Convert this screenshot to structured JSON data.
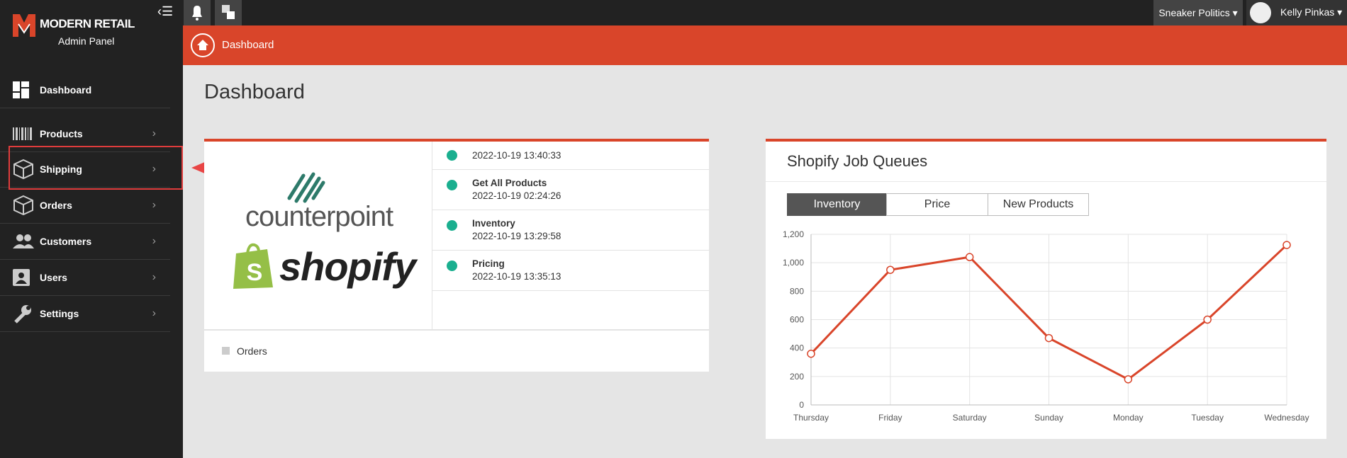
{
  "sidebar": {
    "brand": "MODERN RETAIL",
    "subtitle": "Admin Panel",
    "items": [
      "Dashboard",
      "Products",
      "Shipping",
      "Orders",
      "Customers",
      "Users",
      "Settings"
    ]
  },
  "topbar": {
    "store": "Sneaker Politics",
    "user": "Kelly Pinkas"
  },
  "breadcrumb": "Dashboard",
  "page_title": "Dashboard",
  "status_panel": {
    "logos": [
      "counterpoint",
      "shopify"
    ],
    "items": [
      {
        "time": "2022-10-19 13:40:33"
      },
      {
        "label": "Get All Products",
        "time": "2022-10-19 02:24:26"
      },
      {
        "label": "Inventory",
        "time": "2022-10-19 13:29:58"
      },
      {
        "label": "Pricing",
        "time": "2022-10-19 13:35:13"
      }
    ],
    "legend": "Orders"
  },
  "job_queues": {
    "tabs": [
      "Inventory",
      "Price",
      "New Products"
    ]
  },
  "chart_data": {
    "type": "line",
    "title": "Shopify Job Queues",
    "categories": [
      "Thursday",
      "Friday",
      "Saturday",
      "Sunday",
      "Monday",
      "Tuesday",
      "Wednesday"
    ],
    "values": [
      360,
      950,
      1040,
      470,
      180,
      600,
      1125
    ],
    "color": "#d9452a",
    "ylim": [
      0,
      1200
    ],
    "yticks": [
      0,
      200,
      400,
      600,
      800,
      {
        "value": 1000,
        "label": "1,000"
      },
      {
        "value": 1200,
        "label": "1,200"
      }
    ],
    "grid": true
  }
}
